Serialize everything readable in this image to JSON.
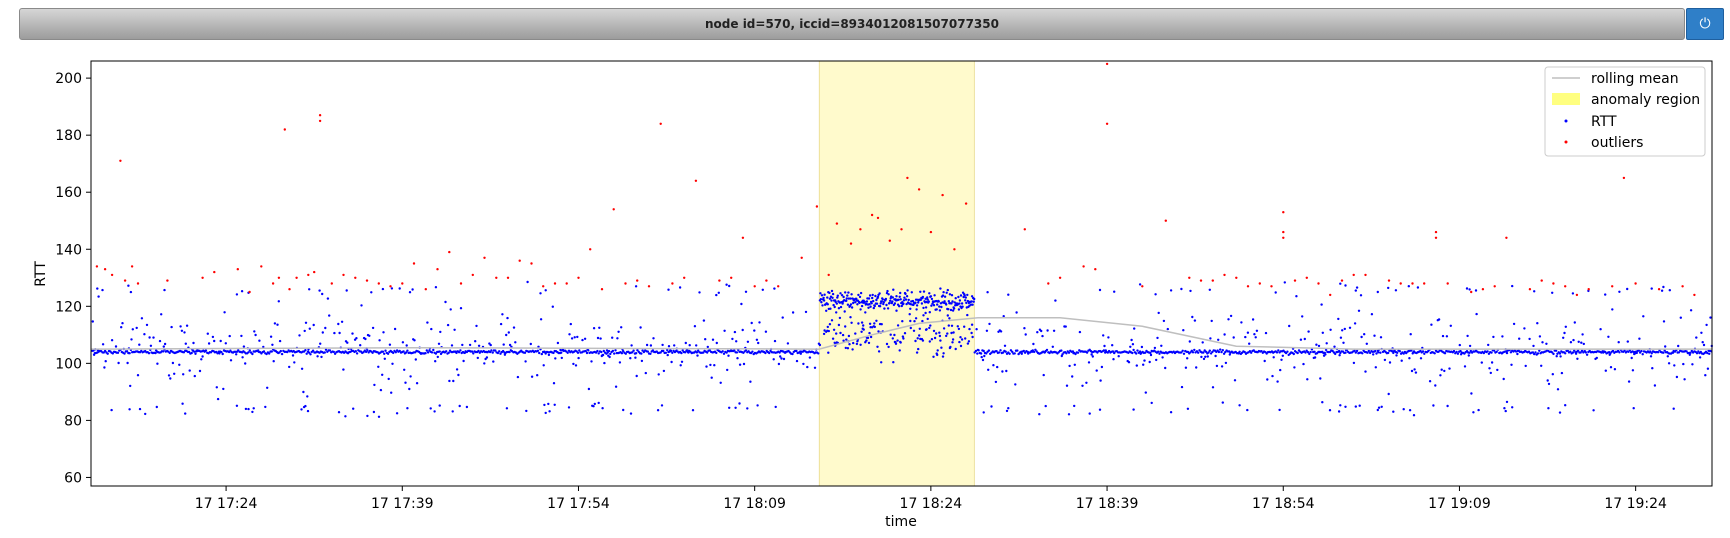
{
  "header": {
    "title": "node id=570, iccid=8934012081507077350",
    "power_icon": "power-icon"
  },
  "chart_data": {
    "type": "scatter",
    "xlabel": "time",
    "ylabel": "RTT",
    "ylim": [
      57,
      206
    ],
    "y_ticks": [
      60,
      80,
      100,
      120,
      140,
      160,
      180,
      200
    ],
    "xlim_minutes": [
      1032.5,
      1170.5
    ],
    "x_tick_labels": [
      "17 17:24",
      "17 17:39",
      "17 17:54",
      "17 18:09",
      "17 18:24",
      "17 18:39",
      "17 18:54",
      "17 19:09",
      "17 19:24"
    ],
    "x_tick_minutes": [
      1044,
      1059,
      1074,
      1089,
      1104,
      1119,
      1134,
      1149,
      1164
    ],
    "grid": false,
    "legend_position": "top-right",
    "legend": [
      "rolling mean",
      "anomaly region",
      "RTT",
      "outliers"
    ],
    "colors": {
      "rtt": "#0000ff",
      "outliers": "#ff0000",
      "rolling_mean": "#bfbfbf",
      "anomaly": "#ffff99"
    },
    "anomaly_region": {
      "start": "17 18:14",
      "end": "17 18:27",
      "start_minute": 1094.5,
      "end_minute": 1107.7
    },
    "rolling_mean": [
      {
        "t": 1032.5,
        "v": 105
      },
      {
        "t": 1060,
        "v": 105.5
      },
      {
        "t": 1094.5,
        "v": 105
      },
      {
        "t": 1099,
        "v": 110
      },
      {
        "t": 1103,
        "v": 114
      },
      {
        "t": 1108,
        "v": 116
      },
      {
        "t": 1115,
        "v": 116
      },
      {
        "t": 1122,
        "v": 113
      },
      {
        "t": 1130,
        "v": 106
      },
      {
        "t": 1140,
        "v": 105
      },
      {
        "t": 1170.5,
        "v": 105
      }
    ],
    "outliers": [
      {
        "t": 1033,
        "v": 134
      },
      {
        "t": 1033.7,
        "v": 133
      },
      {
        "t": 1034.3,
        "v": 131
      },
      {
        "t": 1035,
        "v": 171
      },
      {
        "t": 1035.4,
        "v": 129
      },
      {
        "t": 1036,
        "v": 134
      },
      {
        "t": 1036.5,
        "v": 128
      },
      {
        "t": 1039,
        "v": 129
      },
      {
        "t": 1042,
        "v": 130
      },
      {
        "t": 1043,
        "v": 132
      },
      {
        "t": 1045,
        "v": 133
      },
      {
        "t": 1046,
        "v": 125
      },
      {
        "t": 1047,
        "v": 134
      },
      {
        "t": 1048,
        "v": 128
      },
      {
        "t": 1048.5,
        "v": 130
      },
      {
        "t": 1049,
        "v": 182
      },
      {
        "t": 1049.4,
        "v": 126
      },
      {
        "t": 1050,
        "v": 130
      },
      {
        "t": 1051,
        "v": 131
      },
      {
        "t": 1051.5,
        "v": 132
      },
      {
        "t": 1052,
        "v": 185
      },
      {
        "t": 1052,
        "v": 187
      },
      {
        "t": 1053,
        "v": 128
      },
      {
        "t": 1054,
        "v": 131
      },
      {
        "t": 1055,
        "v": 130
      },
      {
        "t": 1056,
        "v": 129
      },
      {
        "t": 1057,
        "v": 128
      },
      {
        "t": 1058,
        "v": 127
      },
      {
        "t": 1059,
        "v": 128
      },
      {
        "t": 1060,
        "v": 135
      },
      {
        "t": 1061,
        "v": 126
      },
      {
        "t": 1062,
        "v": 133
      },
      {
        "t": 1063,
        "v": 139
      },
      {
        "t": 1064,
        "v": 128
      },
      {
        "t": 1065,
        "v": 131
      },
      {
        "t": 1066,
        "v": 137
      },
      {
        "t": 1067,
        "v": 130
      },
      {
        "t": 1068,
        "v": 130
      },
      {
        "t": 1069,
        "v": 136
      },
      {
        "t": 1070,
        "v": 135
      },
      {
        "t": 1071,
        "v": 127
      },
      {
        "t": 1072,
        "v": 128
      },
      {
        "t": 1073,
        "v": 128
      },
      {
        "t": 1074,
        "v": 130
      },
      {
        "t": 1075,
        "v": 140
      },
      {
        "t": 1076,
        "v": 126
      },
      {
        "t": 1077,
        "v": 154
      },
      {
        "t": 1078,
        "v": 128
      },
      {
        "t": 1079,
        "v": 129
      },
      {
        "t": 1080,
        "v": 127
      },
      {
        "t": 1081,
        "v": 184
      },
      {
        "t": 1082,
        "v": 128
      },
      {
        "t": 1083,
        "v": 130
      },
      {
        "t": 1084,
        "v": 164
      },
      {
        "t": 1086,
        "v": 129
      },
      {
        "t": 1087,
        "v": 130
      },
      {
        "t": 1088,
        "v": 144
      },
      {
        "t": 1089,
        "v": 127
      },
      {
        "t": 1090,
        "v": 129
      },
      {
        "t": 1091,
        "v": 127
      },
      {
        "t": 1093,
        "v": 137
      },
      {
        "t": 1094.3,
        "v": 155
      },
      {
        "t": 1095.3,
        "v": 131
      },
      {
        "t": 1096,
        "v": 149
      },
      {
        "t": 1097.2,
        "v": 142
      },
      {
        "t": 1098,
        "v": 147
      },
      {
        "t": 1099,
        "v": 152
      },
      {
        "t": 1099.5,
        "v": 151
      },
      {
        "t": 1100.5,
        "v": 143
      },
      {
        "t": 1101.5,
        "v": 147
      },
      {
        "t": 1102,
        "v": 165
      },
      {
        "t": 1103,
        "v": 161
      },
      {
        "t": 1104,
        "v": 146
      },
      {
        "t": 1105,
        "v": 159
      },
      {
        "t": 1106,
        "v": 140
      },
      {
        "t": 1107,
        "v": 156
      },
      {
        "t": 1112,
        "v": 147
      },
      {
        "t": 1114,
        "v": 128
      },
      {
        "t": 1115,
        "v": 130
      },
      {
        "t": 1117,
        "v": 134
      },
      {
        "t": 1118,
        "v": 133
      },
      {
        "t": 1119,
        "v": 205
      },
      {
        "t": 1119,
        "v": 184
      },
      {
        "t": 1122,
        "v": 127
      },
      {
        "t": 1124,
        "v": 150
      },
      {
        "t": 1126,
        "v": 130
      },
      {
        "t": 1127,
        "v": 129
      },
      {
        "t": 1128,
        "v": 129
      },
      {
        "t": 1129,
        "v": 131
      },
      {
        "t": 1130,
        "v": 130
      },
      {
        "t": 1131,
        "v": 127
      },
      {
        "t": 1132,
        "v": 128
      },
      {
        "t": 1133,
        "v": 127
      },
      {
        "t": 1134,
        "v": 153
      },
      {
        "t": 1134,
        "v": 146
      },
      {
        "t": 1134,
        "v": 144
      },
      {
        "t": 1135,
        "v": 129
      },
      {
        "t": 1136,
        "v": 130
      },
      {
        "t": 1137,
        "v": 128
      },
      {
        "t": 1138,
        "v": 124
      },
      {
        "t": 1139,
        "v": 129
      },
      {
        "t": 1140,
        "v": 131
      },
      {
        "t": 1141,
        "v": 131
      },
      {
        "t": 1143,
        "v": 129
      },
      {
        "t": 1144,
        "v": 128
      },
      {
        "t": 1145,
        "v": 128
      },
      {
        "t": 1146,
        "v": 128
      },
      {
        "t": 1147,
        "v": 146
      },
      {
        "t": 1147,
        "v": 144
      },
      {
        "t": 1148,
        "v": 128
      },
      {
        "t": 1150,
        "v": 125
      },
      {
        "t": 1151,
        "v": 126
      },
      {
        "t": 1152,
        "v": 127
      },
      {
        "t": 1153,
        "v": 144
      },
      {
        "t": 1155,
        "v": 126
      },
      {
        "t": 1156,
        "v": 129
      },
      {
        "t": 1157,
        "v": 128
      },
      {
        "t": 1158,
        "v": 127
      },
      {
        "t": 1159,
        "v": 124
      },
      {
        "t": 1160,
        "v": 126
      },
      {
        "t": 1162,
        "v": 127
      },
      {
        "t": 1163,
        "v": 165
      },
      {
        "t": 1164,
        "v": 128
      },
      {
        "t": 1166,
        "v": 126
      },
      {
        "t": 1168,
        "v": 127
      },
      {
        "t": 1169,
        "v": 124
      }
    ]
  }
}
